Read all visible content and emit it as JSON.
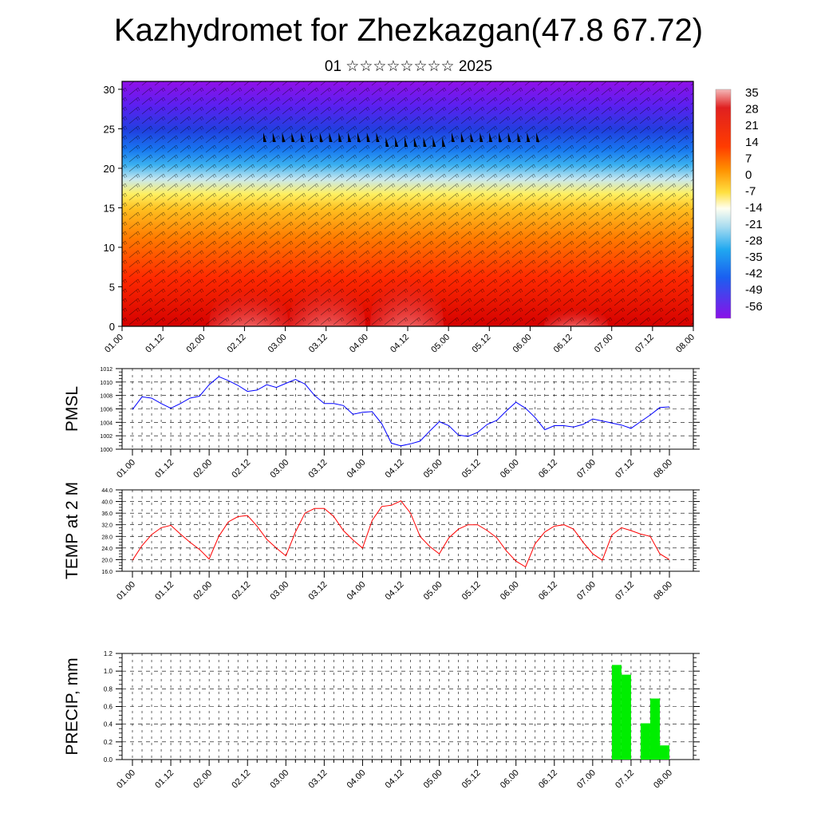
{
  "header": {
    "title": "Kazhydromet for Zhezkazgan(47.8 67.72)",
    "subtitle": "01 ☆☆☆☆☆☆☆☆ 2025"
  },
  "chart_data": [
    {
      "type": "heatmap",
      "title": "",
      "xlabel": "",
      "ylabel": "",
      "x_tick_labels": [
        "01.00",
        "01.12",
        "02.00",
        "02.12",
        "03.00",
        "03.12",
        "04.00",
        "04.12",
        "05.00",
        "05.12",
        "06.00",
        "06.12",
        "07.00",
        "07.12",
        "08.00"
      ],
      "y_ticks": [
        0,
        5,
        10,
        15,
        20,
        25,
        30
      ],
      "ylim": [
        0,
        31
      ],
      "colorbar_labels": [
        "35",
        "28",
        "21",
        "14",
        "7",
        "0",
        "-7",
        "-14",
        "-21",
        "-28",
        "-35",
        "-42",
        "-49",
        "-56"
      ],
      "colors": [
        "#8a2be2",
        "#4169e1",
        "#1e90ff",
        "#00bfff",
        "#87ceeb",
        "#ffffff",
        "#ffff80",
        "#ffd700",
        "#ffa500",
        "#ff6600",
        "#ff0000",
        "#dd0000",
        "#f08080",
        "#ffc0c0"
      ],
      "overlay": "wind barbs"
    },
    {
      "type": "line",
      "ylabel": "PMSL",
      "ylim": [
        1000,
        1012
      ],
      "y_tick_labels": [
        "1012",
        "1010",
        "1008",
        "1006",
        "1004",
        "1002",
        "1000"
      ],
      "x_tick_labels": [
        "01.00",
        "01.12",
        "02.00",
        "02.12",
        "03.00",
        "03.12",
        "04.00",
        "04.12",
        "05.00",
        "05.12",
        "06.00",
        "06.12",
        "07.00",
        "07.12",
        "08.00"
      ],
      "color": "#0000ff",
      "x": [
        0,
        3,
        6,
        9,
        12,
        15,
        18,
        21,
        24,
        27,
        30,
        33,
        36,
        39,
        42,
        45,
        48,
        51,
        54,
        57,
        60,
        63,
        66,
        69,
        72,
        75,
        78,
        81,
        84,
        87,
        90,
        93,
        96,
        99,
        102,
        105,
        108,
        111,
        114,
        117,
        120,
        123,
        126,
        129,
        132,
        135,
        138,
        141,
        144,
        147,
        150,
        153,
        156,
        159,
        162,
        165,
        168
      ],
      "values": [
        1005.9,
        1007.8,
        1007.6,
        1006.8,
        1006.1,
        1006.8,
        1007.6,
        1007.9,
        1009.6,
        1010.8,
        1010.2,
        1009.5,
        1008.6,
        1008.8,
        1009.6,
        1009.2,
        1009.8,
        1010.4,
        1009.7,
        1008.0,
        1006.8,
        1006.8,
        1006.5,
        1005.2,
        1005.5,
        1005.6,
        1003.8,
        1000.9,
        1000.5,
        1000.8,
        1001.2,
        1002.7,
        1004.1,
        1003.5,
        1002.1,
        1001.9,
        1002.5,
        1003.7,
        1004.3,
        1005.7,
        1007.0,
        1006.1,
        1004.7,
        1002.9,
        1003.5,
        1003.5,
        1003.3,
        1003.7,
        1004.5,
        1004.2,
        1003.9,
        1003.6,
        1003.1,
        1004.1,
        1005.1,
        1006.2,
        1006.3
      ]
    },
    {
      "type": "line",
      "ylabel": "TEMP at 2 M",
      "ylim": [
        16,
        44
      ],
      "y_tick_labels": [
        "44.0",
        "40.0",
        "36.0",
        "32.0",
        "28.0",
        "24.0",
        "20.0",
        "16.0"
      ],
      "x_tick_labels": [
        "01.00",
        "01.12",
        "02.00",
        "02.12",
        "03.00",
        "03.12",
        "04.00",
        "04.12",
        "05.00",
        "05.12",
        "06.00",
        "06.12",
        "07.00",
        "07.12",
        "08.00"
      ],
      "color": "#ff0000",
      "x": [
        0,
        3,
        6,
        9,
        12,
        15,
        18,
        21,
        24,
        27,
        30,
        33,
        36,
        39,
        42,
        45,
        48,
        51,
        54,
        57,
        60,
        63,
        66,
        69,
        72,
        75,
        78,
        81,
        84,
        87,
        90,
        93,
        96,
        99,
        102,
        105,
        108,
        111,
        114,
        117,
        120,
        123,
        126,
        129,
        132,
        135,
        138,
        141,
        144,
        147,
        150,
        153,
        156,
        159,
        162,
        165,
        168
      ],
      "values": [
        19.8,
        24.8,
        28.6,
        31.0,
        31.8,
        28.8,
        26.0,
        23.5,
        20.2,
        28.0,
        33.0,
        34.8,
        35.2,
        31.5,
        27.0,
        24.0,
        21.3,
        29.5,
        36.0,
        37.6,
        37.6,
        34.8,
        30.0,
        26.8,
        24.0,
        33.5,
        38.3,
        38.7,
        40.2,
        36.0,
        28.0,
        24.5,
        22.0,
        27.5,
        30.5,
        32.0,
        32.0,
        30.0,
        27.5,
        23.0,
        19.5,
        17.5,
        25.5,
        29.5,
        31.5,
        32.0,
        30.5,
        26.0,
        22.0,
        19.8,
        28.5,
        31.0,
        30.0,
        28.8,
        28.0,
        22.0,
        20.0
      ]
    },
    {
      "type": "bar",
      "ylabel": "PRECIP, mm",
      "ylim": [
        0,
        1.2
      ],
      "y_tick_labels": [
        "1.2",
        "1.0",
        "0.8",
        "0.6",
        "0.4",
        "0.2",
        "0.0"
      ],
      "x_tick_labels": [
        "01.00",
        "01.12",
        "02.00",
        "02.12",
        "03.00",
        "03.12",
        "04.00",
        "04.12",
        "05.00",
        "05.12",
        "06.00",
        "06.12",
        "07.00",
        "07.12",
        "08.00"
      ],
      "color": "#00ee00",
      "bars": [
        {
          "x": 150,
          "value": 1.07
        },
        {
          "x": 153,
          "value": 0.96
        },
        {
          "x": 159,
          "value": 0.41
        },
        {
          "x": 162,
          "value": 0.69
        },
        {
          "x": 165,
          "value": 0.16
        }
      ]
    }
  ]
}
